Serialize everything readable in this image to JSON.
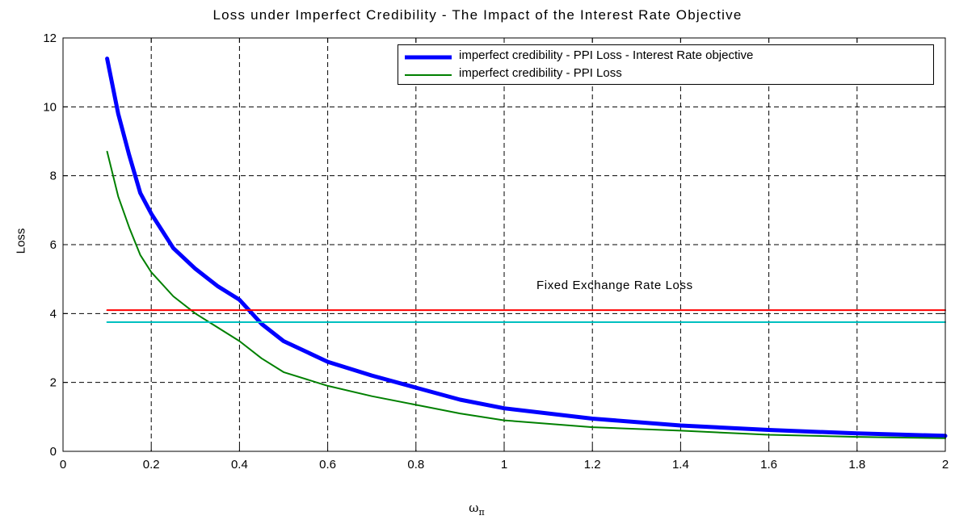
{
  "chart_data": {
    "type": "line",
    "title": "Loss under Imperfect Credibility - The Impact of the Interest Rate Objective",
    "xlabel_symbol": "ω",
    "xlabel_subscript": "π",
    "ylabel": "Loss",
    "xlim": [
      0,
      2
    ],
    "ylim": [
      0,
      12
    ],
    "xticks": [
      "0",
      "0.2",
      "0.4",
      "0.6",
      "0.8",
      "1",
      "1.2",
      "1.4",
      "1.6",
      "1.8",
      "2"
    ],
    "yticks": [
      "0",
      "2",
      "4",
      "6",
      "8",
      "10",
      "12"
    ],
    "grid": true,
    "legend_position": "top-right",
    "series": [
      {
        "name": "imperfect credibility - PPI Loss - Interest Rate objective",
        "color": "#0000ff",
        "x": [
          0.1,
          0.125,
          0.15,
          0.175,
          0.2,
          0.25,
          0.3,
          0.35,
          0.4,
          0.45,
          0.5,
          0.6,
          0.7,
          0.8,
          0.9,
          1.0,
          1.2,
          1.4,
          1.6,
          1.8,
          2.0
        ],
        "y": [
          11.4,
          9.8,
          8.6,
          7.5,
          6.9,
          5.9,
          5.3,
          4.8,
          4.4,
          3.7,
          3.2,
          2.6,
          2.2,
          1.85,
          1.5,
          1.25,
          0.95,
          0.75,
          0.62,
          0.52,
          0.45
        ]
      },
      {
        "name": "imperfect credibility - PPI Loss",
        "color": "#008000",
        "x": [
          0.1,
          0.125,
          0.15,
          0.175,
          0.2,
          0.25,
          0.3,
          0.35,
          0.4,
          0.45,
          0.5,
          0.6,
          0.7,
          0.8,
          0.9,
          1.0,
          1.2,
          1.4,
          1.6,
          1.8,
          2.0
        ],
        "y": [
          8.7,
          7.4,
          6.5,
          5.7,
          5.2,
          4.5,
          4.0,
          3.6,
          3.2,
          2.7,
          2.3,
          1.9,
          1.6,
          1.35,
          1.1,
          0.9,
          0.7,
          0.6,
          0.48,
          0.42,
          0.38
        ]
      },
      {
        "color": "#ff0000",
        "x": [
          0.1,
          2.0
        ],
        "y": [
          4.1,
          4.1
        ]
      },
      {
        "color": "#00c0c0",
        "x": [
          0.1,
          2.0
        ],
        "y": [
          3.75,
          3.75
        ]
      }
    ],
    "annotations": [
      {
        "text": "Fixed Exchange Rate Loss"
      }
    ]
  }
}
